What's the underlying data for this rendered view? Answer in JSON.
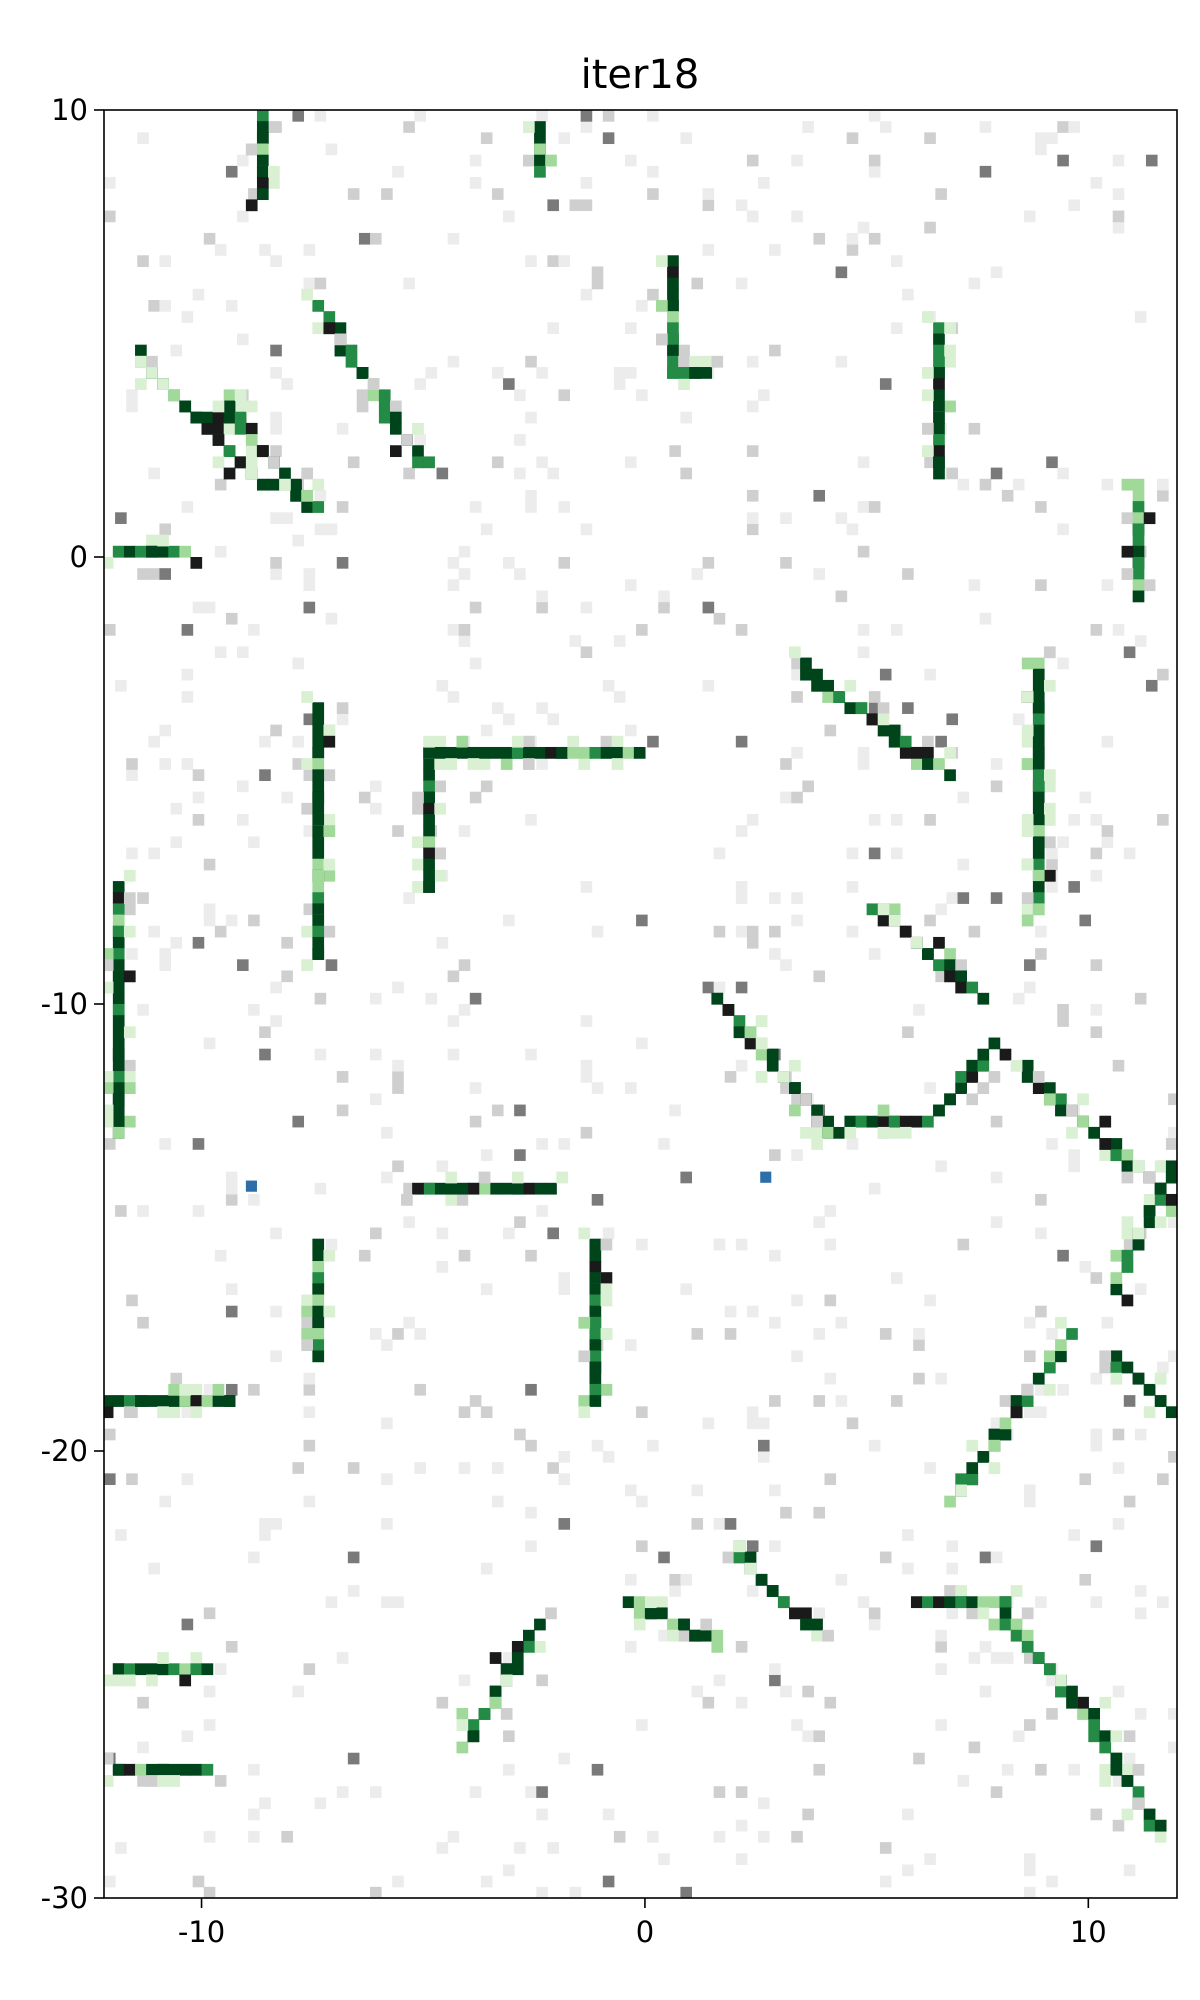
{
  "chart_data": {
    "type": "heatmap",
    "title": "iter18",
    "xlabel": "",
    "ylabel": "",
    "xlim": [
      -12.2,
      12.0
    ],
    "ylim": [
      -30,
      10
    ],
    "xticks": [
      -10,
      0,
      10
    ],
    "yticks": [
      10,
      0,
      -10,
      -20,
      -30
    ],
    "xtick_labels": [
      "-10",
      "0",
      "10"
    ],
    "ytick_labels": [
      "10",
      "0",
      "-10",
      "-20",
      "-30"
    ],
    "colors": {
      "occupied_green_dark": "#00441b",
      "occupied_green_mid": "#238b45",
      "occupied_green_light": "#a1d99b",
      "occupied_green_pale": "#d9f0d3",
      "gray_dark": "#1a1a1a",
      "gray_mid": "#7a7a7a",
      "gray_light": "#cfcfcf",
      "gray_pale": "#ececec",
      "free": "#ffffff",
      "outlier_blue": "#2c6ea8"
    },
    "green_wall_segments": [
      {
        "from": [
          -12.1,
          -19
        ],
        "to": [
          -9.3,
          -19
        ]
      },
      {
        "from": [
          -11.8,
          -7.5
        ],
        "to": [
          -11.8,
          -13.0
        ]
      },
      {
        "from": [
          -7.5,
          -3.5
        ],
        "to": [
          -7.5,
          -9.0
        ]
      },
      {
        "from": [
          -7.5,
          -15.5
        ],
        "to": [
          -7.5,
          -18.0
        ]
      },
      {
        "from": [
          -5.0,
          -4.5
        ],
        "to": [
          -5.0,
          -7.5
        ]
      },
      {
        "from": [
          -5.0,
          -4.5
        ],
        "to": [
          -0.2,
          -4.5
        ]
      },
      {
        "from": [
          -1.2,
          -15.5
        ],
        "to": [
          -1.2,
          -18.8
        ]
      },
      {
        "from": [
          -2.2,
          -14.2
        ],
        "to": [
          -5.2,
          -14.2
        ]
      },
      {
        "from": [
          1.5,
          -9.8
        ],
        "to": [
          4.2,
          -12.8
        ]
      },
      {
        "from": [
          4.2,
          -12.8
        ],
        "to": [
          6.5,
          -12.5
        ]
      },
      {
        "from": [
          6.5,
          -12.5
        ],
        "to": [
          7.8,
          -11.0
        ]
      },
      {
        "from": [
          8.6,
          -11.5
        ],
        "to": [
          12.0,
          -14.5
        ]
      },
      {
        "from": [
          5.2,
          -7.8
        ],
        "to": [
          7.5,
          -9.8
        ]
      },
      {
        "from": [
          3.5,
          -2.5
        ],
        "to": [
          6.8,
          -4.8
        ]
      },
      {
        "from": [
          8.9,
          -2.5
        ],
        "to": [
          8.9,
          -8.0
        ]
      },
      {
        "from": [
          0.6,
          6.5
        ],
        "to": [
          0.6,
          4.2
        ]
      },
      {
        "from": [
          0.6,
          4.2
        ],
        "to": [
          1.4,
          4.2
        ]
      },
      {
        "from": [
          -2.4,
          9.6
        ],
        "to": [
          -2.4,
          8.6
        ]
      },
      {
        "from": [
          -8.6,
          9.8
        ],
        "to": [
          -8.6,
          8.2
        ]
      },
      {
        "from": [
          -7.3,
          5.5
        ],
        "to": [
          -5.0,
          2.0
        ]
      },
      {
        "from": [
          -11.5,
          4.5
        ],
        "to": [
          -8.5,
          1.5
        ]
      },
      {
        "from": [
          -9.5,
          3.5
        ],
        "to": [
          -7.5,
          1.0
        ]
      },
      {
        "from": [
          6.7,
          5.0
        ],
        "to": [
          6.7,
          1.8
        ]
      },
      {
        "from": [
          11.0,
          1.5
        ],
        "to": [
          11.0,
          -0.8
        ]
      },
      {
        "from": [
          -12.0,
          0.0
        ],
        "to": [
          -10.5,
          0.0
        ]
      },
      {
        "from": [
          2.0,
          -22.2
        ],
        "to": [
          3.8,
          -24.0
        ]
      },
      {
        "from": [
          -0.3,
          -23.4
        ],
        "to": [
          1.5,
          -24.2
        ]
      },
      {
        "from": [
          -2.5,
          -24.0
        ],
        "to": [
          -4.0,
          -26.5
        ]
      },
      {
        "from": [
          6.0,
          -23.5
        ],
        "to": [
          8.0,
          -23.5
        ]
      },
      {
        "from": [
          8.0,
          -23.5
        ],
        "to": [
          10.0,
          -26.0
        ]
      },
      {
        "from": [
          10.0,
          -26.0
        ],
        "to": [
          11.5,
          -28.5
        ]
      },
      {
        "from": [
          -12.0,
          -24.8
        ],
        "to": [
          -10.0,
          -24.8
        ]
      },
      {
        "from": [
          -12.0,
          -27.2
        ],
        "to": [
          -10.0,
          -27.2
        ]
      },
      {
        "from": [
          7.0,
          -21.0
        ],
        "to": [
          9.5,
          -17.5
        ]
      },
      {
        "from": [
          10.5,
          -16.5
        ],
        "to": [
          12.0,
          -13.5
        ]
      },
      {
        "from": [
          10.6,
          -18.0
        ],
        "to": [
          12.0,
          -19.2
        ]
      }
    ]
  }
}
